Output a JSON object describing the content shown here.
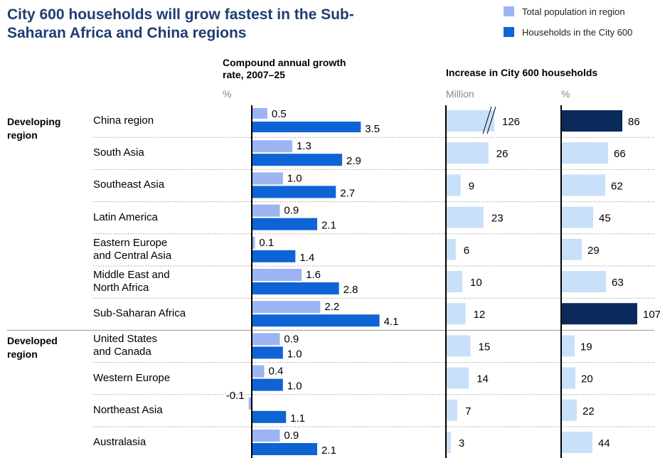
{
  "title": "City 600 households will grow fastest in the Sub-Saharan Africa and China regions",
  "legend": [
    {
      "label": "Total population in region",
      "color": "#9db4f3"
    },
    {
      "label": "Households in the City 600",
      "color": "#0e64d4"
    }
  ],
  "colors": {
    "light_panel": "#c9e0fa",
    "highlight": "#0a2a5c"
  },
  "groups": {
    "developing": "Developing region",
    "developed": "Developed region"
  },
  "panel_headers": {
    "cagr_title": "Compound annual growth rate, 2007–25",
    "cagr_unit": "%",
    "increase_title": "Increase in City 600 households",
    "million_unit": "Million",
    "percent_unit": "%"
  },
  "chart_data": {
    "type": "bar",
    "categories": [
      "China region",
      "South Asia",
      "Southeast Asia",
      "Latin America",
      "Eastern Europe and Central Asia",
      "Middle East and North Africa",
      "Sub-Saharan Africa",
      "United States and Canada",
      "Western Europe",
      "Northeast Asia",
      "Australasia"
    ],
    "category_labels": [
      "China region",
      "South Asia",
      "Southeast Asia",
      "Latin America",
      "Eastern Europe\nand Central Asia",
      "Middle East and\nNorth Africa",
      "Sub-Saharan Africa",
      "United States\nand Canada",
      "Western Europe",
      "Northeast Asia",
      "Australasia"
    ],
    "series": [
      {
        "name": "Total population in region",
        "values": [
          0.5,
          1.3,
          1.0,
          0.9,
          0.1,
          1.6,
          2.2,
          0.9,
          0.4,
          -0.1,
          0.9
        ]
      },
      {
        "name": "Households in the City 600",
        "values": [
          3.5,
          2.9,
          2.7,
          2.1,
          1.4,
          2.8,
          4.1,
          1.0,
          1.0,
          1.1,
          2.1
        ]
      }
    ],
    "increase_million": [
      126,
      26,
      9,
      23,
      6,
      10,
      12,
      15,
      14,
      7,
      3
    ],
    "increase_percent": [
      86,
      66,
      62,
      45,
      29,
      63,
      107,
      19,
      20,
      22,
      44
    ],
    "million_axis_break_on": "China region",
    "percent_highlighted": [
      "China region",
      "Sub-Saharan Africa"
    ]
  }
}
